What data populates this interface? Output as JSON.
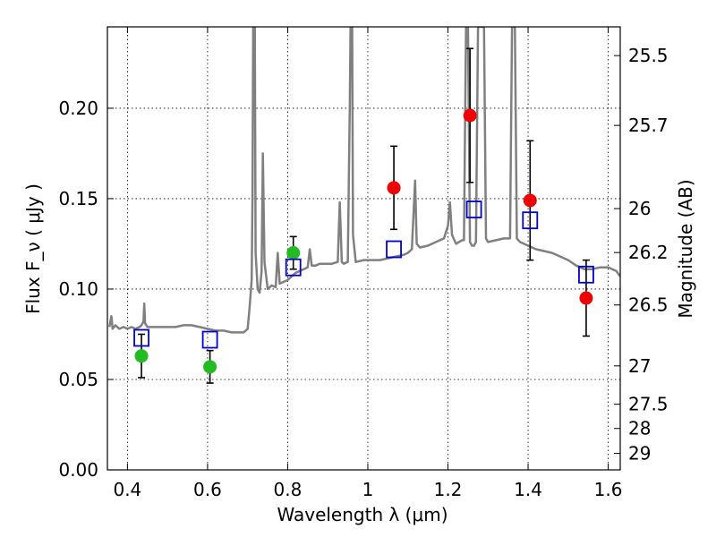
{
  "chart_data": {
    "type": "scatter",
    "xlabel": "Wavelength  λ (μm)",
    "ylabel": "Flux  F_ν  ( μJy )",
    "ylabel_right": "Magnitude (AB)",
    "xlim": [
      0.35,
      1.63
    ],
    "ylim": [
      0.0,
      0.245
    ],
    "grid": true,
    "x_ticks": [
      0.4,
      0.6,
      0.8,
      1.0,
      1.2,
      1.4,
      1.6
    ],
    "x_tick_labels": [
      "0.4",
      "0.6",
      "0.8",
      "1",
      "1.2",
      "1.4",
      "1.6"
    ],
    "y_ticks": [
      0.0,
      0.05,
      0.1,
      0.15,
      0.2
    ],
    "y_tick_labels": [
      "0.00",
      "0.05",
      "0.10",
      "0.15",
      "0.20"
    ],
    "right_ticks": [
      {
        "label": "25.5",
        "flux": 0.2291
      },
      {
        "label": "25.7",
        "flux": 0.1905
      },
      {
        "label": "26",
        "flux": 0.1445
      },
      {
        "label": "26.2",
        "flux": 0.1202
      },
      {
        "label": "26.5",
        "flux": 0.0912
      },
      {
        "label": "27",
        "flux": 0.0575
      },
      {
        "label": "27.5",
        "flux": 0.0363
      },
      {
        "label": "28",
        "flux": 0.0229
      },
      {
        "label": "29",
        "flux": 0.0091
      }
    ],
    "series": [
      {
        "name": "green-points",
        "color": "#22bb22",
        "marker": "circle",
        "points": [
          {
            "x": 0.435,
            "y": 0.063,
            "err": 0.012
          },
          {
            "x": 0.606,
            "y": 0.057,
            "err": 0.009
          },
          {
            "x": 0.814,
            "y": 0.12,
            "err": 0.009
          }
        ]
      },
      {
        "name": "red-points",
        "color": "#ee0000",
        "marker": "circle",
        "points": [
          {
            "x": 1.065,
            "y": 0.156,
            "err": 0.023
          },
          {
            "x": 1.255,
            "y": 0.196,
            "err": 0.037
          },
          {
            "x": 1.405,
            "y": 0.149,
            "err": 0.033
          },
          {
            "x": 1.545,
            "y": 0.095,
            "err": 0.021
          }
        ]
      },
      {
        "name": "model-squares",
        "color": "#0000cc",
        "marker": "square",
        "points": [
          {
            "x": 0.435,
            "y": 0.073
          },
          {
            "x": 0.606,
            "y": 0.072
          },
          {
            "x": 0.814,
            "y": 0.112
          },
          {
            "x": 1.065,
            "y": 0.122
          },
          {
            "x": 1.265,
            "y": 0.144
          },
          {
            "x": 1.405,
            "y": 0.138
          },
          {
            "x": 1.545,
            "y": 0.108
          }
        ]
      }
    ],
    "spectrum": {
      "name": "model-spectrum",
      "color": "#808080",
      "points": [
        [
          0.355,
          0.079
        ],
        [
          0.36,
          0.085
        ],
        [
          0.363,
          0.078
        ],
        [
          0.37,
          0.08
        ],
        [
          0.38,
          0.078
        ],
        [
          0.39,
          0.079
        ],
        [
          0.4,
          0.078
        ],
        [
          0.41,
          0.079
        ],
        [
          0.42,
          0.078
        ],
        [
          0.43,
          0.079
        ],
        [
          0.435,
          0.08
        ],
        [
          0.44,
          0.082
        ],
        [
          0.442,
          0.092
        ],
        [
          0.444,
          0.081
        ],
        [
          0.45,
          0.079
        ],
        [
          0.46,
          0.079
        ],
        [
          0.48,
          0.079
        ],
        [
          0.5,
          0.079
        ],
        [
          0.52,
          0.079
        ],
        [
          0.54,
          0.08
        ],
        [
          0.56,
          0.08
        ],
        [
          0.58,
          0.079
        ],
        [
          0.6,
          0.078
        ],
        [
          0.62,
          0.077
        ],
        [
          0.64,
          0.077
        ],
        [
          0.66,
          0.076
        ],
        [
          0.68,
          0.076
        ],
        [
          0.69,
          0.076
        ],
        [
          0.7,
          0.078
        ],
        [
          0.705,
          0.09
        ],
        [
          0.71,
          0.105
        ],
        [
          0.712,
          0.15
        ],
        [
          0.714,
          0.245
        ],
        [
          0.718,
          0.245
        ],
        [
          0.72,
          0.12
        ],
        [
          0.725,
          0.1
        ],
        [
          0.73,
          0.098
        ],
        [
          0.735,
          0.11
        ],
        [
          0.738,
          0.175
        ],
        [
          0.742,
          0.115
        ],
        [
          0.75,
          0.1
        ],
        [
          0.76,
          0.102
        ],
        [
          0.77,
          0.101
        ],
        [
          0.775,
          0.12
        ],
        [
          0.78,
          0.103
        ],
        [
          0.79,
          0.104
        ],
        [
          0.8,
          0.105
        ],
        [
          0.81,
          0.107
        ],
        [
          0.82,
          0.109
        ],
        [
          0.83,
          0.11
        ],
        [
          0.84,
          0.111
        ],
        [
          0.85,
          0.112
        ],
        [
          0.855,
          0.122
        ],
        [
          0.86,
          0.113
        ],
        [
          0.87,
          0.113
        ],
        [
          0.88,
          0.114
        ],
        [
          0.89,
          0.114
        ],
        [
          0.9,
          0.114
        ],
        [
          0.91,
          0.114
        ],
        [
          0.925,
          0.115
        ],
        [
          0.93,
          0.148
        ],
        [
          0.935,
          0.115
        ],
        [
          0.94,
          0.114
        ],
        [
          0.95,
          0.115
        ],
        [
          0.955,
          0.2
        ],
        [
          0.957,
          0.245
        ],
        [
          0.961,
          0.245
        ],
        [
          0.963,
          0.13
        ],
        [
          0.97,
          0.115
        ],
        [
          0.99,
          0.116
        ],
        [
          1.01,
          0.116
        ],
        [
          1.03,
          0.116
        ],
        [
          1.05,
          0.117
        ],
        [
          1.07,
          0.118
        ],
        [
          1.09,
          0.119
        ],
        [
          1.1,
          0.12
        ],
        [
          1.11,
          0.122
        ],
        [
          1.118,
          0.16
        ],
        [
          1.122,
          0.125
        ],
        [
          1.13,
          0.123
        ],
        [
          1.15,
          0.124
        ],
        [
          1.17,
          0.126
        ],
        [
          1.19,
          0.128
        ],
        [
          1.2,
          0.135
        ],
        [
          1.205,
          0.148
        ],
        [
          1.21,
          0.13
        ],
        [
          1.22,
          0.125
        ],
        [
          1.235,
          0.127
        ],
        [
          1.24,
          0.127
        ],
        [
          1.245,
          0.245
        ],
        [
          1.25,
          0.245
        ],
        [
          1.255,
          0.126
        ],
        [
          1.26,
          0.124
        ],
        [
          1.265,
          0.124
        ],
        [
          1.27,
          0.126
        ],
        [
          1.275,
          0.245
        ],
        [
          1.29,
          0.245
        ],
        [
          1.295,
          0.128
        ],
        [
          1.3,
          0.126
        ],
        [
          1.32,
          0.127
        ],
        [
          1.34,
          0.128
        ],
        [
          1.355,
          0.128
        ],
        [
          1.36,
          0.245
        ],
        [
          1.367,
          0.245
        ],
        [
          1.372,
          0.128
        ],
        [
          1.38,
          0.126
        ],
        [
          1.4,
          0.124
        ],
        [
          1.42,
          0.122
        ],
        [
          1.44,
          0.121
        ],
        [
          1.46,
          0.12
        ],
        [
          1.48,
          0.118
        ],
        [
          1.5,
          0.116
        ],
        [
          1.52,
          0.113
        ],
        [
          1.54,
          0.111
        ],
        [
          1.56,
          0.111
        ],
        [
          1.58,
          0.112
        ],
        [
          1.6,
          0.112
        ],
        [
          1.62,
          0.11
        ],
        [
          1.63,
          0.107
        ]
      ]
    }
  }
}
